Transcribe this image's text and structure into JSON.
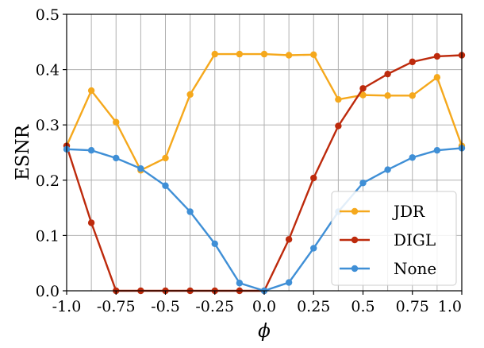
{
  "chart_data": {
    "type": "line",
    "xlabel": "ϕ",
    "ylabel": "ESNR",
    "xlim": [
      -1.0,
      1.0
    ],
    "ylim": [
      0.0,
      0.5
    ],
    "xticks": [
      "-1.0",
      "-0.75",
      "-0.5",
      "-0.25",
      "0.0",
      "0.25",
      "0.5",
      "0.75",
      "1.0"
    ],
    "yticks": [
      "0.0",
      "0.1",
      "0.2",
      "0.3",
      "0.4",
      "0.5"
    ],
    "grid": true,
    "legend_position": "lower-right",
    "x": [
      -1.0,
      -0.875,
      -0.75,
      -0.625,
      -0.5,
      -0.375,
      -0.25,
      -0.125,
      0.0,
      0.125,
      0.25,
      0.375,
      0.5,
      0.625,
      0.75,
      0.875,
      1.0
    ],
    "series": [
      {
        "name": "JDR",
        "color": "#f5a81c",
        "values": [
          0.262,
          0.362,
          0.305,
          0.218,
          0.24,
          0.355,
          0.428,
          0.428,
          0.428,
          0.426,
          0.427,
          0.346,
          0.354,
          0.353,
          0.353,
          0.386,
          0.262
        ]
      },
      {
        "name": "DIGL",
        "color": "#bd2a0c",
        "values": [
          0.262,
          0.123,
          0.0,
          0.0,
          0.0,
          0.0,
          0.0,
          0.0,
          0.0,
          0.093,
          0.204,
          0.298,
          0.366,
          0.392,
          0.414,
          0.424,
          0.426
        ]
      },
      {
        "name": "None",
        "color": "#3f8fd6",
        "values": [
          0.256,
          0.254,
          0.24,
          0.221,
          0.19,
          0.143,
          0.085,
          0.014,
          0.0,
          0.015,
          0.077,
          0.143,
          0.195,
          0.219,
          0.241,
          0.254,
          0.258
        ]
      }
    ]
  }
}
